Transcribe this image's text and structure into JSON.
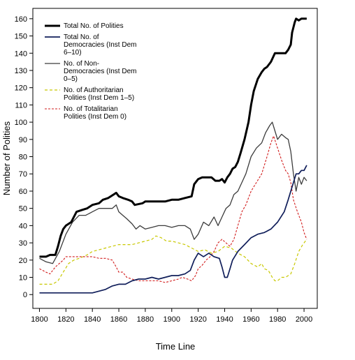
{
  "chart_data": {
    "type": "line",
    "title": "",
    "xlabel": "Time Line",
    "ylabel": "Number of Polities",
    "xlim": [
      1795,
      2010
    ],
    "ylim": [
      -8,
      166
    ],
    "xticks": [
      1800,
      1820,
      1840,
      1860,
      1880,
      1900,
      1920,
      1940,
      1960,
      1980,
      2000
    ],
    "yticks": [
      0,
      10,
      20,
      30,
      40,
      50,
      60,
      70,
      80,
      90,
      100,
      110,
      120,
      130,
      140,
      150,
      160
    ],
    "grid": false,
    "legend": "top-left",
    "series": [
      {
        "name": "Total No. of Polities",
        "color": "#000000",
        "dash": "",
        "width": 3,
        "points": [
          [
            1800,
            22
          ],
          [
            1805,
            22
          ],
          [
            1808,
            23
          ],
          [
            1812,
            23
          ],
          [
            1814,
            28
          ],
          [
            1816,
            34
          ],
          [
            1818,
            38
          ],
          [
            1820,
            40
          ],
          [
            1824,
            42
          ],
          [
            1828,
            48
          ],
          [
            1832,
            49
          ],
          [
            1836,
            50
          ],
          [
            1840,
            52
          ],
          [
            1845,
            53
          ],
          [
            1848,
            55
          ],
          [
            1852,
            56
          ],
          [
            1856,
            58
          ],
          [
            1858,
            59
          ],
          [
            1860,
            57
          ],
          [
            1863,
            56
          ],
          [
            1867,
            55
          ],
          [
            1870,
            54
          ],
          [
            1872,
            52
          ],
          [
            1878,
            53
          ],
          [
            1880,
            54
          ],
          [
            1885,
            54
          ],
          [
            1890,
            54
          ],
          [
            1895,
            54
          ],
          [
            1900,
            55
          ],
          [
            1905,
            55
          ],
          [
            1910,
            56
          ],
          [
            1915,
            57
          ],
          [
            1917,
            64
          ],
          [
            1920,
            67
          ],
          [
            1923,
            68
          ],
          [
            1926,
            68
          ],
          [
            1930,
            68
          ],
          [
            1933,
            66
          ],
          [
            1936,
            66
          ],
          [
            1938,
            67
          ],
          [
            1940,
            65
          ],
          [
            1942,
            68
          ],
          [
            1944,
            70
          ],
          [
            1946,
            73
          ],
          [
            1948,
            74
          ],
          [
            1950,
            77
          ],
          [
            1952,
            82
          ],
          [
            1955,
            90
          ],
          [
            1958,
            100
          ],
          [
            1960,
            110
          ],
          [
            1962,
            118
          ],
          [
            1965,
            125
          ],
          [
            1968,
            129
          ],
          [
            1970,
            131
          ],
          [
            1972,
            132
          ],
          [
            1975,
            135
          ],
          [
            1978,
            140
          ],
          [
            1982,
            140
          ],
          [
            1986,
            140
          ],
          [
            1988,
            142
          ],
          [
            1990,
            145
          ],
          [
            1991,
            152
          ],
          [
            1993,
            158
          ],
          [
            1994,
            160
          ],
          [
            1996,
            159
          ],
          [
            1998,
            160
          ],
          [
            2002,
            160
          ]
        ]
      },
      {
        "name": "Total No. of Democracies (Inst Dem 6–10)",
        "color": "#101e5a",
        "dash": "",
        "width": 1.7,
        "points": [
          [
            1800,
            1
          ],
          [
            1820,
            1
          ],
          [
            1840,
            1
          ],
          [
            1845,
            2
          ],
          [
            1850,
            3
          ],
          [
            1855,
            5
          ],
          [
            1860,
            6
          ],
          [
            1865,
            6
          ],
          [
            1870,
            8
          ],
          [
            1875,
            9
          ],
          [
            1880,
            9
          ],
          [
            1885,
            10
          ],
          [
            1890,
            9
          ],
          [
            1895,
            10
          ],
          [
            1900,
            11
          ],
          [
            1905,
            11
          ],
          [
            1910,
            12
          ],
          [
            1914,
            14
          ],
          [
            1917,
            20
          ],
          [
            1920,
            24
          ],
          [
            1924,
            22
          ],
          [
            1928,
            24
          ],
          [
            1932,
            22
          ],
          [
            1936,
            21
          ],
          [
            1938,
            16
          ],
          [
            1940,
            10
          ],
          [
            1942,
            10
          ],
          [
            1944,
            15
          ],
          [
            1946,
            20
          ],
          [
            1950,
            25
          ],
          [
            1955,
            29
          ],
          [
            1960,
            33
          ],
          [
            1965,
            35
          ],
          [
            1970,
            36
          ],
          [
            1975,
            38
          ],
          [
            1980,
            42
          ],
          [
            1985,
            48
          ],
          [
            1988,
            55
          ],
          [
            1990,
            60
          ],
          [
            1992,
            65
          ],
          [
            1994,
            70
          ],
          [
            1996,
            70
          ],
          [
            1998,
            72
          ],
          [
            2000,
            72
          ],
          [
            2002,
            75
          ]
        ]
      },
      {
        "name": "No. of Non-Democracies (Inst Dem 0–5)",
        "color": "#3c3c3c",
        "dash": "",
        "width": 1.3,
        "points": [
          [
            1800,
            21
          ],
          [
            1805,
            19
          ],
          [
            1810,
            18
          ],
          [
            1815,
            25
          ],
          [
            1820,
            35
          ],
          [
            1825,
            42
          ],
          [
            1830,
            46
          ],
          [
            1835,
            46
          ],
          [
            1840,
            48
          ],
          [
            1845,
            50
          ],
          [
            1850,
            50
          ],
          [
            1855,
            50
          ],
          [
            1858,
            52
          ],
          [
            1860,
            48
          ],
          [
            1863,
            46
          ],
          [
            1866,
            44
          ],
          [
            1870,
            41
          ],
          [
            1873,
            38
          ],
          [
            1876,
            40
          ],
          [
            1880,
            38
          ],
          [
            1885,
            39
          ],
          [
            1890,
            40
          ],
          [
            1895,
            40
          ],
          [
            1900,
            39
          ],
          [
            1905,
            40
          ],
          [
            1910,
            40
          ],
          [
            1914,
            38
          ],
          [
            1917,
            32
          ],
          [
            1920,
            35
          ],
          [
            1924,
            42
          ],
          [
            1928,
            40
          ],
          [
            1932,
            45
          ],
          [
            1935,
            40
          ],
          [
            1938,
            45
          ],
          [
            1941,
            50
          ],
          [
            1944,
            52
          ],
          [
            1947,
            58
          ],
          [
            1950,
            60
          ],
          [
            1953,
            65
          ],
          [
            1956,
            70
          ],
          [
            1960,
            80
          ],
          [
            1964,
            85
          ],
          [
            1968,
            88
          ],
          [
            1971,
            94
          ],
          [
            1974,
            98
          ],
          [
            1976,
            100
          ],
          [
            1978,
            95
          ],
          [
            1980,
            90
          ],
          [
            1983,
            93
          ],
          [
            1986,
            91
          ],
          [
            1988,
            90
          ],
          [
            1990,
            83
          ],
          [
            1992,
            70
          ],
          [
            1994,
            60
          ],
          [
            1996,
            68
          ],
          [
            1998,
            64
          ],
          [
            2000,
            68
          ],
          [
            2002,
            66
          ]
        ]
      },
      {
        "name": "No. of Authoritarian Polities (Inst Dem 1–5)",
        "color": "#c8c800",
        "dash": "4,3",
        "width": 1.2,
        "points": [
          [
            1800,
            6
          ],
          [
            1805,
            6
          ],
          [
            1810,
            6
          ],
          [
            1814,
            8
          ],
          [
            1818,
            13
          ],
          [
            1822,
            18
          ],
          [
            1826,
            20
          ],
          [
            1830,
            21
          ],
          [
            1836,
            23
          ],
          [
            1840,
            25
          ],
          [
            1845,
            26
          ],
          [
            1850,
            27
          ],
          [
            1855,
            28
          ],
          [
            1860,
            29
          ],
          [
            1865,
            29
          ],
          [
            1870,
            29
          ],
          [
            1875,
            30
          ],
          [
            1880,
            31
          ],
          [
            1885,
            32
          ],
          [
            1888,
            34
          ],
          [
            1892,
            33
          ],
          [
            1896,
            31
          ],
          [
            1900,
            31
          ],
          [
            1905,
            30
          ],
          [
            1910,
            29
          ],
          [
            1915,
            27
          ],
          [
            1920,
            25
          ],
          [
            1925,
            26
          ],
          [
            1930,
            24
          ],
          [
            1935,
            25
          ],
          [
            1940,
            28
          ],
          [
            1945,
            27
          ],
          [
            1950,
            24
          ],
          [
            1955,
            22
          ],
          [
            1960,
            18
          ],
          [
            1965,
            16
          ],
          [
            1968,
            18
          ],
          [
            1970,
            15
          ],
          [
            1973,
            14
          ],
          [
            1976,
            10
          ],
          [
            1978,
            8
          ],
          [
            1980,
            8
          ],
          [
            1983,
            10
          ],
          [
            1986,
            10
          ],
          [
            1990,
            12
          ],
          [
            1993,
            18
          ],
          [
            1996,
            25
          ],
          [
            1999,
            29
          ],
          [
            2002,
            32
          ]
        ]
      },
      {
        "name": "No. of Totalitarian Polities (Inst Dem 0)",
        "color": "#d21e1e",
        "dash": "3,2",
        "width": 1.1,
        "points": [
          [
            1800,
            15
          ],
          [
            1805,
            13
          ],
          [
            1808,
            12
          ],
          [
            1812,
            16
          ],
          [
            1818,
            20
          ],
          [
            1820,
            22
          ],
          [
            1830,
            22
          ],
          [
            1840,
            22
          ],
          [
            1845,
            21
          ],
          [
            1850,
            21
          ],
          [
            1855,
            20
          ],
          [
            1858,
            16
          ],
          [
            1860,
            13
          ],
          [
            1863,
            13
          ],
          [
            1866,
            10
          ],
          [
            1870,
            9
          ],
          [
            1875,
            8
          ],
          [
            1880,
            8
          ],
          [
            1885,
            8
          ],
          [
            1890,
            8
          ],
          [
            1895,
            7
          ],
          [
            1900,
            8
          ],
          [
            1905,
            9
          ],
          [
            1908,
            10
          ],
          [
            1912,
            9
          ],
          [
            1915,
            8
          ],
          [
            1918,
            11
          ],
          [
            1920,
            15
          ],
          [
            1923,
            17
          ],
          [
            1926,
            20
          ],
          [
            1929,
            22
          ],
          [
            1932,
            25
          ],
          [
            1935,
            30
          ],
          [
            1938,
            32
          ],
          [
            1941,
            30
          ],
          [
            1944,
            28
          ],
          [
            1947,
            32
          ],
          [
            1950,
            40
          ],
          [
            1953,
            48
          ],
          [
            1956,
            52
          ],
          [
            1960,
            60
          ],
          [
            1964,
            65
          ],
          [
            1968,
            70
          ],
          [
            1972,
            80
          ],
          [
            1975,
            88
          ],
          [
            1977,
            92
          ],
          [
            1980,
            85
          ],
          [
            1983,
            78
          ],
          [
            1986,
            72
          ],
          [
            1988,
            70
          ],
          [
            1990,
            65
          ],
          [
            1992,
            55
          ],
          [
            1995,
            48
          ],
          [
            1998,
            42
          ],
          [
            2000,
            36
          ],
          [
            2002,
            32
          ]
        ]
      }
    ],
    "legend_entries": [
      {
        "lines": [
          "Total No. of Polities"
        ],
        "color": "#000000",
        "dash": "",
        "width": 3
      },
      {
        "lines": [
          "Total No. of",
          "Democracies (Inst Dem",
          "6–10)"
        ],
        "color": "#101e5a",
        "dash": "",
        "width": 1.7
      },
      {
        "lines": [
          "No. of Non-",
          "Democracies (Inst Dem",
          "0–5)"
        ],
        "color": "#3c3c3c",
        "dash": "",
        "width": 1.3
      },
      {
        "lines": [
          "No. of Authoritarian",
          "Polities (Inst Dem 1–5)"
        ],
        "color": "#c8c800",
        "dash": "4,3",
        "width": 1.2
      },
      {
        "lines": [
          "No. of Totalitarian",
          "Polities (Inst Dem 0)"
        ],
        "color": "#d21e1e",
        "dash": "3,2",
        "width": 1.1
      }
    ]
  }
}
